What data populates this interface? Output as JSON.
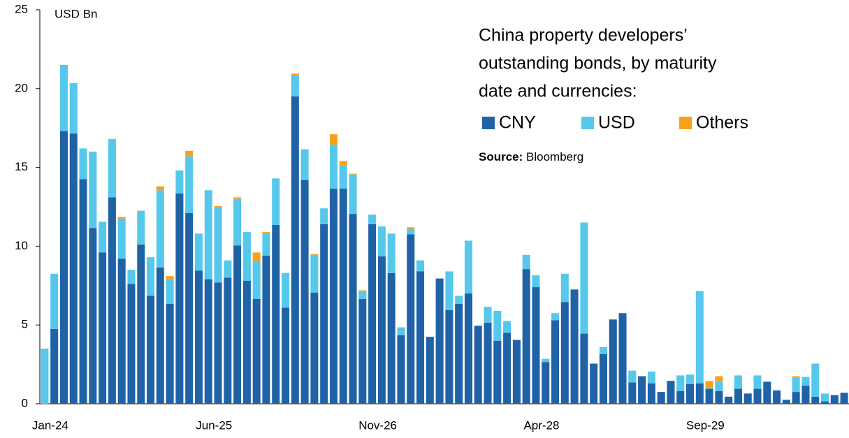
{
  "chart_data": {
    "type": "stacked_bar",
    "title": [
      "China property developers’",
      "outstanding bonds, by maturity",
      "date and currencies:"
    ],
    "ylabel": "USD Bn",
    "source_label": "Source:",
    "source": "Bloomberg",
    "categories": [
      "Jan-24",
      null,
      null,
      null,
      null,
      null,
      null,
      null,
      null,
      null,
      null,
      null,
      null,
      null,
      null,
      null,
      null,
      "Jun-25",
      null,
      null,
      null,
      null,
      null,
      null,
      null,
      null,
      null,
      null,
      null,
      null,
      null,
      null,
      null,
      null,
      "Nov-26",
      null,
      null,
      null,
      null,
      null,
      null,
      null,
      null,
      null,
      null,
      null,
      null,
      null,
      null,
      null,
      null,
      "Apr-28",
      null,
      null,
      null,
      null,
      null,
      null,
      null,
      null,
      null,
      null,
      null,
      null,
      null,
      null,
      null,
      null,
      "Sep-29",
      null,
      null,
      null,
      null,
      null,
      null,
      null,
      null,
      null,
      null,
      null,
      null,
      null,
      null,
      null
    ],
    "series": [
      {
        "name": "CNY",
        "color": "#1f63a6",
        "values": [
          0,
          4.75,
          17.3,
          17.15,
          14.25,
          11.15,
          9.6,
          13.1,
          9.2,
          7.6,
          10.1,
          6.85,
          8.65,
          6.35,
          13.35,
          12.1,
          8.45,
          7.9,
          7.7,
          8.0,
          10.05,
          7.8,
          6.65,
          9.4,
          11.35,
          6.1,
          19.5,
          14.2,
          7.05,
          11.4,
          13.65,
          13.65,
          12.05,
          6.65,
          11.4,
          9.35,
          8.3,
          4.35,
          10.75,
          8.4,
          4.25,
          7.95,
          5.95,
          6.35,
          7.0,
          4.95,
          5.15,
          4.0,
          4.5,
          4.05,
          8.55,
          7.4,
          2.65,
          5.3,
          6.45,
          7.25,
          4.45,
          2.55,
          3.15,
          5.35,
          5.75,
          1.35,
          1.75,
          1.3,
          0.75,
          1.45,
          0.8,
          1.25,
          1.3,
          0.95,
          0.8,
          0.45,
          0.95,
          0.65,
          0.95,
          1.4,
          0.85,
          0.25,
          0.75,
          1.15,
          0.45,
          0.15,
          0.55,
          0.7
        ]
      },
      {
        "name": "USD",
        "color": "#56c8ec",
        "values": [
          3.5,
          3.5,
          4.2,
          3.15,
          1.95,
          4.85,
          1.95,
          3.7,
          2.55,
          0.9,
          2.15,
          2.45,
          4.9,
          1.55,
          1.45,
          3.6,
          2.35,
          5.65,
          4.75,
          1.1,
          2.95,
          3.1,
          2.35,
          1.4,
          2.95,
          2.2,
          1.35,
          1.95,
          2.4,
          1.0,
          2.8,
          1.5,
          2.5,
          0.5,
          0.6,
          1.9,
          2.5,
          0.5,
          0.35,
          0.7,
          0,
          0,
          2.45,
          0.5,
          3.35,
          0,
          1.0,
          1.9,
          0.75,
          0,
          0.9,
          0.75,
          0.2,
          0.45,
          1.8,
          0,
          7.05,
          0,
          0.45,
          0,
          0,
          0.75,
          0,
          0.75,
          0,
          0,
          1.0,
          0.6,
          5.85,
          0.05,
          0.65,
          0,
          0.85,
          0,
          0.85,
          0,
          0,
          0,
          0.9,
          0.55,
          2.1,
          0.5,
          0,
          0
        ]
      },
      {
        "name": "Others",
        "color": "#f7a11a",
        "values": [
          0,
          0,
          0,
          0.05,
          0,
          0,
          0,
          0,
          0.1,
          0,
          0,
          0,
          0.25,
          0.2,
          0,
          0.35,
          0,
          0,
          0.1,
          0,
          0.1,
          0,
          0.6,
          0.1,
          0,
          0,
          0.1,
          0,
          0.05,
          0,
          0.65,
          0.25,
          0.05,
          0.05,
          0,
          0,
          0,
          0,
          0.1,
          0,
          0,
          0,
          0,
          0,
          0,
          0,
          0,
          0,
          0,
          0,
          0,
          0,
          0,
          0,
          0,
          0,
          0,
          0,
          0,
          0,
          0,
          0,
          0,
          0,
          0,
          0,
          0,
          0,
          0,
          0.45,
          0.3,
          0,
          0,
          0,
          0,
          0,
          0,
          0,
          0.1,
          0,
          0,
          0,
          0,
          0
        ]
      }
    ],
    "ylim": [
      0,
      25
    ],
    "yticks": [
      0,
      5,
      10,
      15,
      20,
      25
    ],
    "grid": false
  }
}
